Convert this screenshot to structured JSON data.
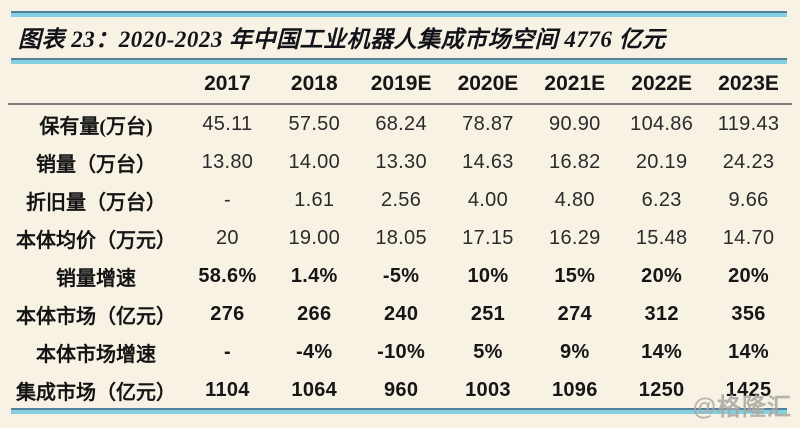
{
  "page": {
    "background_color": "#f7f2e4",
    "accent_line_color": "#84cfe2",
    "accent_line_edge_color": "#55809b",
    "header_rule_color": "#7c7c7c",
    "watermark_color": "#a9a7a0"
  },
  "title": "图表 23：2020-2023 年中国工业机器人集成市场空间 4776 亿元",
  "watermark": "@格隆汇",
  "chart_data": {
    "type": "table",
    "columns": [
      "",
      "2017",
      "2018",
      "2019E",
      "2020E",
      "2021E",
      "2022E",
      "2023E"
    ],
    "rows": [
      {
        "label": "保有量(万台)",
        "emphasis": false,
        "values": [
          "45.11",
          "57.50",
          "68.24",
          "78.87",
          "90.90",
          "104.86",
          "119.43"
        ]
      },
      {
        "label": "销量（万台）",
        "emphasis": false,
        "values": [
          "13.80",
          "14.00",
          "13.30",
          "14.63",
          "16.82",
          "20.19",
          "24.23"
        ]
      },
      {
        "label": "折旧量（万台）",
        "emphasis": false,
        "values": [
          "-",
          "1.61",
          "2.56",
          "4.00",
          "4.80",
          "6.23",
          "9.66"
        ]
      },
      {
        "label": "本体均价（万元）",
        "emphasis": false,
        "values": [
          "20",
          "19.00",
          "18.05",
          "17.15",
          "16.29",
          "15.48",
          "14.70"
        ]
      },
      {
        "label": "销量增速",
        "emphasis": true,
        "values": [
          "58.6%",
          "1.4%",
          "-5%",
          "10%",
          "15%",
          "20%",
          "20%"
        ]
      },
      {
        "label": "本体市场（亿元）",
        "emphasis": true,
        "values": [
          "276",
          "266",
          "240",
          "251",
          "274",
          "312",
          "356"
        ]
      },
      {
        "label": "本体市场增速",
        "emphasis": true,
        "values": [
          "-",
          "-4%",
          "-10%",
          "5%",
          "9%",
          "14%",
          "14%"
        ]
      },
      {
        "label": "集成市场（亿元）",
        "emphasis": true,
        "values": [
          "1104",
          "1064",
          "960",
          "1003",
          "1096",
          "1250",
          "1425"
        ]
      }
    ]
  }
}
